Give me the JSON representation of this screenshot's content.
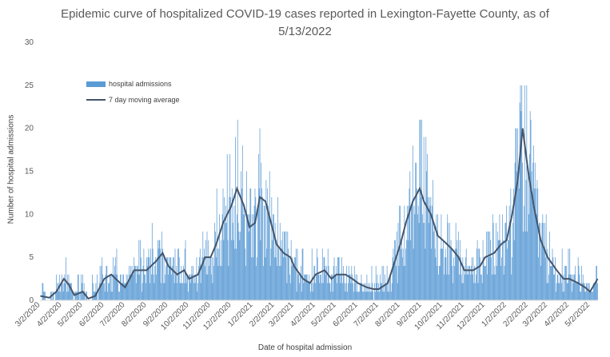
{
  "chart_data": {
    "type": "bar",
    "title_lines": [
      "Epidemic curve of hospitalized COVID-19 cases reported in Lexington-Fayette County, as of",
      "5/13/2022"
    ],
    "xlabel": "Date of hospital admission",
    "ylabel": "Number of hospital admissions",
    "ylim": [
      0,
      30
    ],
    "yticks": [
      0,
      5,
      10,
      15,
      20,
      25,
      30
    ],
    "x_range": [
      "3/2/2020",
      "5/13/2022"
    ],
    "xtick_labels": [
      "3/2/2020",
      "4/2/2020",
      "5/2/2020",
      "6/2/2020",
      "7/2/2020",
      "8/2/2020",
      "9/2/2020",
      "10/2/2020",
      "11/2/2020",
      "12/2/2020",
      "1/2/2021",
      "2/2/2021",
      "3/2/2021",
      "4/2/2021",
      "5/2/2021",
      "6/2/2021",
      "7/2/2021",
      "8/2/2021",
      "9/2/2021",
      "10/2/2021",
      "11/2/2021",
      "12/2/2021",
      "1/2/2022",
      "2/2/2022",
      "3/2/2022",
      "4/2/2022",
      "5/2/2022"
    ],
    "grid": false,
    "legend_placement": "top-left",
    "series": [
      {
        "name": "hospital admissions",
        "kind": "bar",
        "color": "#5B9BD5"
      },
      {
        "name": "7 day moving average",
        "kind": "line",
        "color": "#44546A"
      }
    ],
    "moving_average_approx": [
      {
        "date": "3/2/2020",
        "value": 0.5
      },
      {
        "date": "3/15/2020",
        "value": 0.3
      },
      {
        "date": "3/25/2020",
        "value": 1.0
      },
      {
        "date": "4/5/2020",
        "value": 2.5
      },
      {
        "date": "4/12/2020",
        "value": 1.8
      },
      {
        "date": "4/20/2020",
        "value": 0.6
      },
      {
        "date": "5/2/2020",
        "value": 1.0
      },
      {
        "date": "5/10/2020",
        "value": 0.2
      },
      {
        "date": "5/20/2020",
        "value": 0.5
      },
      {
        "date": "6/2/2020",
        "value": 2.5
      },
      {
        "date": "6/12/2020",
        "value": 3.0
      },
      {
        "date": "6/25/2020",
        "value": 2.0
      },
      {
        "date": "7/2/2020",
        "value": 1.5
      },
      {
        "date": "7/15/2020",
        "value": 3.5
      },
      {
        "date": "8/2/2020",
        "value": 3.5
      },
      {
        "date": "8/15/2020",
        "value": 4.5
      },
      {
        "date": "8/25/2020",
        "value": 5.5
      },
      {
        "date": "9/2/2020",
        "value": 4.0
      },
      {
        "date": "9/15/2020",
        "value": 3.0
      },
      {
        "date": "9/25/2020",
        "value": 3.5
      },
      {
        "date": "10/2/2020",
        "value": 2.5
      },
      {
        "date": "10/15/2020",
        "value": 3.0
      },
      {
        "date": "10/25/2020",
        "value": 5.0
      },
      {
        "date": "11/2/2020",
        "value": 5.0
      },
      {
        "date": "11/10/2020",
        "value": 6.5
      },
      {
        "date": "11/20/2020",
        "value": 9.0
      },
      {
        "date": "12/2/2020",
        "value": 11.0
      },
      {
        "date": "12/10/2020",
        "value": 13.0
      },
      {
        "date": "12/20/2020",
        "value": 11.0
      },
      {
        "date": "12/28/2020",
        "value": 8.5
      },
      {
        "date": "1/5/2021",
        "value": 9.0
      },
      {
        "date": "1/12/2021",
        "value": 12.0
      },
      {
        "date": "1/20/2021",
        "value": 11.5
      },
      {
        "date": "1/28/2021",
        "value": 9.0
      },
      {
        "date": "2/5/2021",
        "value": 6.5
      },
      {
        "date": "2/15/2021",
        "value": 5.5
      },
      {
        "date": "2/25/2021",
        "value": 5.0
      },
      {
        "date": "3/2/2021",
        "value": 4.0
      },
      {
        "date": "3/15/2021",
        "value": 2.5
      },
      {
        "date": "3/25/2021",
        "value": 2.0
      },
      {
        "date": "4/2/2021",
        "value": 3.0
      },
      {
        "date": "4/15/2021",
        "value": 3.5
      },
      {
        "date": "4/25/2021",
        "value": 2.5
      },
      {
        "date": "5/2/2021",
        "value": 3.0
      },
      {
        "date": "5/15/2021",
        "value": 3.0
      },
      {
        "date": "5/25/2021",
        "value": 2.5
      },
      {
        "date": "6/2/2021",
        "value": 2.0
      },
      {
        "date": "6/15/2021",
        "value": 1.5
      },
      {
        "date": "6/25/2021",
        "value": 1.3
      },
      {
        "date": "7/2/2021",
        "value": 1.3
      },
      {
        "date": "7/15/2021",
        "value": 2.0
      },
      {
        "date": "7/25/2021",
        "value": 4.5
      },
      {
        "date": "8/2/2021",
        "value": 6.5
      },
      {
        "date": "8/10/2021",
        "value": 9.0
      },
      {
        "date": "8/20/2021",
        "value": 11.5
      },
      {
        "date": "8/30/2021",
        "value": 13.0
      },
      {
        "date": "9/5/2021",
        "value": 11.5
      },
      {
        "date": "9/15/2021",
        "value": 10.0
      },
      {
        "date": "9/25/2021",
        "value": 7.5
      },
      {
        "date": "10/2/2021",
        "value": 7.0
      },
      {
        "date": "10/15/2021",
        "value": 6.0
      },
      {
        "date": "10/25/2021",
        "value": 5.0
      },
      {
        "date": "11/2/2021",
        "value": 3.5
      },
      {
        "date": "11/15/2021",
        "value": 3.5
      },
      {
        "date": "11/25/2021",
        "value": 4.0
      },
      {
        "date": "12/2/2021",
        "value": 5.0
      },
      {
        "date": "12/15/2021",
        "value": 5.5
      },
      {
        "date": "12/25/2021",
        "value": 6.5
      },
      {
        "date": "1/2/2022",
        "value": 7.0
      },
      {
        "date": "1/10/2022",
        "value": 10.0
      },
      {
        "date": "1/18/2022",
        "value": 14.0
      },
      {
        "date": "1/25/2022",
        "value": 20.0
      },
      {
        "date": "2/2/2022",
        "value": 15.0
      },
      {
        "date": "2/10/2022",
        "value": 11.0
      },
      {
        "date": "2/20/2022",
        "value": 7.0
      },
      {
        "date": "3/2/2022",
        "value": 5.0
      },
      {
        "date": "3/15/2022",
        "value": 3.5
      },
      {
        "date": "3/25/2022",
        "value": 2.5
      },
      {
        "date": "4/2/2022",
        "value": 2.5
      },
      {
        "date": "4/15/2022",
        "value": 2.0
      },
      {
        "date": "4/25/2022",
        "value": 1.5
      },
      {
        "date": "5/2/2022",
        "value": 1.0
      },
      {
        "date": "5/13/2022",
        "value": 2.5
      }
    ]
  }
}
